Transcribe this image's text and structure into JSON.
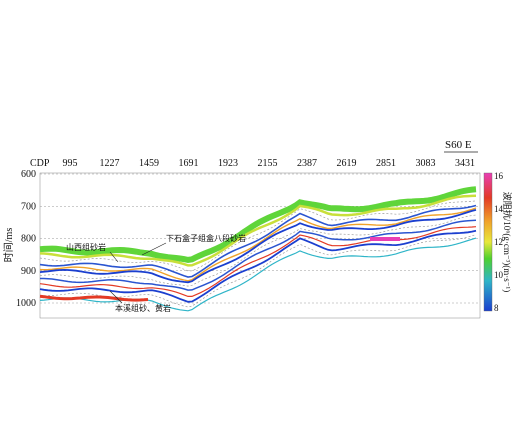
{
  "section": {
    "direction_label": "S60 E",
    "cdp_label": "CDP",
    "cdp_ticks": [
      "995",
      "1227",
      "1459",
      "1691",
      "1923",
      "2155",
      "2387",
      "2619",
      "2851",
      "3083",
      "3431"
    ],
    "time_axis_label": "时间/ms",
    "time_ticks": [
      "600",
      "700",
      "800",
      "900",
      "1000"
    ],
    "annotations": {
      "upper_sand": "下石盒子组盒八段砂岩",
      "shanxi_sand": "山西组砂岩",
      "benxi_sand": "本溪组砂、黄岩"
    }
  },
  "colorbar": {
    "title": "波阻抗/10⁶(g·cm⁻³)(m·s⁻¹)",
    "tick_labels": [
      "16",
      "14",
      "12",
      "10",
      "8"
    ],
    "colors": [
      "#e83fb5",
      "#e33a25",
      "#f0a22a",
      "#e8e83a",
      "#4fd12e",
      "#2fb5c8",
      "#1a3fcf"
    ]
  },
  "chart_data": {
    "type": "heatmap",
    "title": "",
    "xlabel": "CDP",
    "ylabel": "时间/ms",
    "x_ticks": [
      995,
      1227,
      1459,
      1691,
      1923,
      2155,
      2387,
      2619,
      2851,
      3083,
      3431
    ],
    "y_ticks": [
      600,
      700,
      800,
      900,
      1000
    ],
    "colorbar_range": [
      8,
      16
    ],
    "colorbar_label": "波阻抗/10⁶(g·cm⁻³)(m·s⁻¹)"
  }
}
